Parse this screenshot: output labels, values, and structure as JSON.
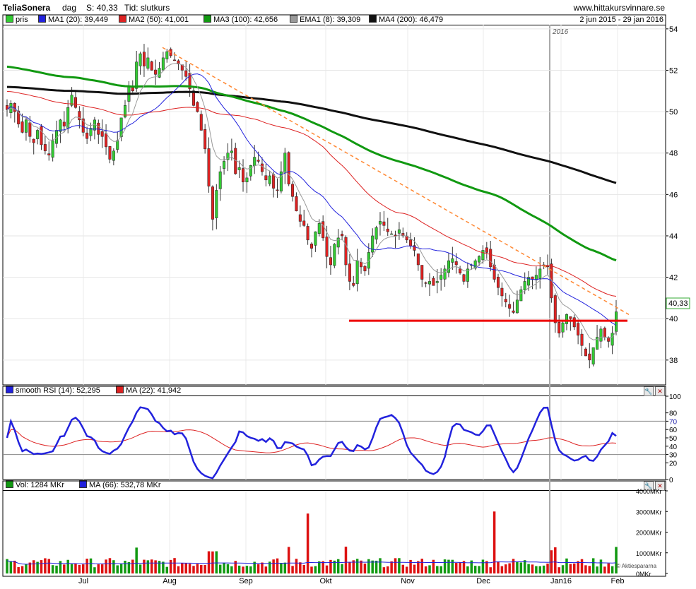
{
  "header": {
    "ticker": "TeliaSonera",
    "interval": "dag",
    "last_label": "S: 40,33",
    "time_label": "Tid: slutkurs",
    "site": "www.hittakursvinnare.se",
    "date_range": "2 jun 2015 - 29 jan 2016"
  },
  "price_legend": [
    {
      "label": "pris",
      "color": "#33cc33"
    },
    {
      "label": "MA1 (20): 39,449",
      "color": "#2222dd"
    },
    {
      "label": "MA2 (50): 41,001",
      "color": "#dd2222"
    },
    {
      "label": "MA3 (100): 42,656",
      "color": "#119911"
    },
    {
      "label": "EMA1 (8): 39,309",
      "color": "#999999"
    },
    {
      "label": "MA4 (200): 46,479",
      "color": "#111111"
    }
  ],
  "rsi_legend": [
    {
      "label": "smooth RSI (14): 52,295",
      "color": "#2222dd"
    },
    {
      "label": "MA (22): 41,942",
      "color": "#dd2222"
    }
  ],
  "vol_legend": [
    {
      "label": "Vol: 1284 MKr",
      "color": "#119911"
    },
    {
      "label": "MA (66): 532,78 MKr",
      "color": "#2222dd"
    }
  ],
  "year_marker": "2016",
  "last_price_tag": "40,33",
  "credit": "© Aktiespararna",
  "chart_data": [
    {
      "type": "candlestick",
      "x_range": [
        "2015-06-02",
        "2016-01-29"
      ],
      "x_ticks": [
        "Jul",
        "Aug",
        "Sep",
        "Okt",
        "Nov",
        "Dec",
        "Jan16",
        "Feb"
      ],
      "y_ticks": [
        38,
        40,
        42,
        44,
        46,
        48,
        50,
        52,
        54
      ],
      "ylim": [
        36.8,
        54.2
      ],
      "close": [
        50.1,
        50.4,
        50.0,
        49.4,
        49.0,
        49.6,
        48.8,
        48.5,
        49.1,
        48.4,
        48.1,
        47.9,
        48.6,
        49.1,
        49.6,
        49.3,
        50.2,
        50.8,
        50.2,
        49.6,
        49.0,
        48.7,
        49.2,
        49.6,
        48.9,
        48.8,
        48.3,
        47.7,
        48.1,
        48.6,
        49.7,
        50.3,
        51.2,
        51.0,
        52.4,
        52.8,
        52.2,
        52.6,
        52.0,
        51.8,
        52.1,
        52.6,
        52.9,
        52.7,
        52.5,
        52.3,
        52.0,
        51.7,
        51.1,
        50.3,
        50.0,
        49.1,
        48.2,
        46.4,
        44.8,
        46.2,
        47.1,
        47.6,
        48.0,
        48.1,
        47.0,
        47.3,
        46.6,
        46.8,
        47.4,
        47.8,
        47.6,
        47.1,
        46.7,
        46.9,
        46.3,
        46.2,
        47.1,
        48.0,
        46.5,
        45.9,
        45.2,
        44.7,
        44.5,
        43.8,
        43.4,
        44.2,
        44.6,
        43.9,
        43.0,
        42.6,
        43.6,
        43.9,
        44.0,
        42.6,
        41.8,
        41.6,
        42.8,
        42.5,
        42.3,
        43.2,
        44.0,
        44.4,
        44.7,
        44.5,
        44.2,
        44.1,
        44.0,
        44.3,
        44.0,
        43.8,
        43.5,
        43.3,
        42.6,
        41.9,
        41.7,
        41.8,
        41.6,
        41.8,
        42.1,
        42.4,
        42.8,
        42.9,
        42.6,
        42.2,
        41.8,
        42.4,
        42.6,
        42.8,
        43.0,
        43.3,
        43.2,
        42.5,
        41.9,
        41.5,
        41.1,
        40.8,
        40.5,
        40.3,
        40.9,
        41.4,
        41.8,
        42.0,
        41.9,
        42.1,
        42.4,
        42.6,
        42.5,
        41.0,
        39.8,
        39.3,
        39.8,
        40.2,
        40.0,
        39.6,
        39.2,
        38.7,
        38.2,
        38.0,
        38.6,
        39.1,
        39.5,
        39.1,
        38.9,
        39.3,
        40.33
      ],
      "moving_averages": [
        {
          "name": "MA1 (20)",
          "last": 39.449
        },
        {
          "name": "MA2 (50)",
          "last": 41.001
        },
        {
          "name": "MA3 (100)",
          "last": 42.656
        },
        {
          "name": "EMA1 (8)",
          "last": 39.309
        },
        {
          "name": "MA4 (200)",
          "last": 46.479
        }
      ],
      "annotations": [
        {
          "kind": "support",
          "value": 39.9,
          "color": "#ee0000"
        },
        {
          "kind": "falling-trendline",
          "from": 53.1,
          "to": 40.2,
          "color": "#ff8833"
        }
      ]
    },
    {
      "type": "line",
      "title": "smooth RSI (14)",
      "ylim": [
        0,
        100
      ],
      "y_ticks": [
        0,
        20,
        30,
        40,
        50,
        60,
        70,
        80,
        100
      ],
      "reference_lines": [
        30,
        70
      ],
      "series": [
        {
          "name": "smooth RSI (14)",
          "last": 52.295
        },
        {
          "name": "MA (22)",
          "last": 41.942
        }
      ]
    },
    {
      "type": "bar",
      "title": "Vol",
      "y_ticks": [
        "0MKr",
        "1000MKr",
        "2000MKr",
        "3000MKr",
        "4000MKr"
      ],
      "ylim": [
        0,
        4000
      ],
      "last": 1284,
      "ma66": 532.78,
      "spikes": [
        2900,
        3000
      ]
    }
  ]
}
